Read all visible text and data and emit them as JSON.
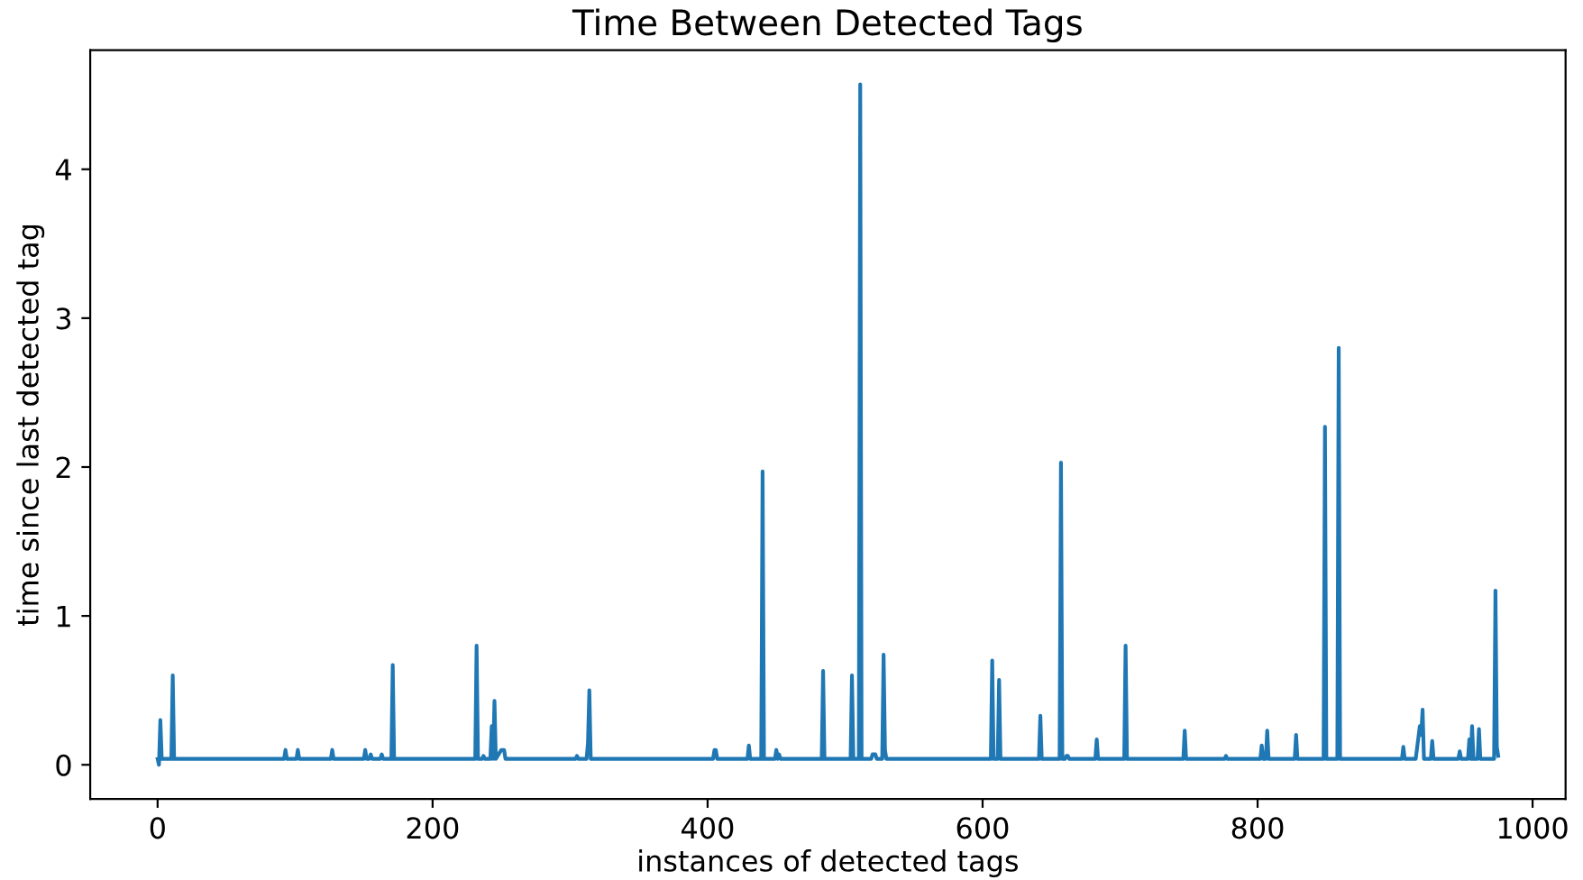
{
  "chart_data": {
    "type": "line",
    "title": "Time Between Detected Tags",
    "xlabel": "instances of detected tags",
    "ylabel": "time since last detected tag",
    "x": [
      0,
      1,
      2,
      3,
      10,
      11,
      12,
      92,
      93,
      94,
      101,
      102,
      103,
      126,
      127,
      128,
      150,
      151,
      152,
      154,
      155,
      156,
      162,
      163,
      164,
      170,
      171,
      172,
      231,
      232,
      233,
      236,
      237,
      238,
      242,
      243,
      244,
      245,
      246,
      250,
      252,
      253,
      304,
      305,
      306,
      312,
      313,
      314,
      315,
      404,
      405,
      406,
      407,
      429,
      430,
      431,
      439,
      440,
      441,
      449,
      450,
      451,
      452,
      453,
      483,
      484,
      485,
      504,
      505,
      506,
      510,
      511,
      512,
      519,
      520,
      522,
      523,
      527,
      528,
      529,
      530,
      606,
      607,
      608,
      611,
      612,
      613,
      641,
      642,
      643,
      656,
      657,
      658,
      660,
      661,
      662,
      663,
      682,
      683,
      684,
      703,
      704,
      705,
      746,
      747,
      748,
      776,
      777,
      778,
      802,
      803,
      804,
      806,
      807,
      808,
      827,
      828,
      829,
      848,
      849,
      850,
      858,
      859,
      860,
      905,
      906,
      907,
      915,
      918,
      919,
      920,
      921,
      926,
      927,
      928,
      946,
      947,
      948,
      953,
      954,
      955,
      956,
      957,
      960,
      961,
      962,
      972,
      973,
      974,
      975
    ],
    "series": [
      {
        "color": "#1f77b4",
        "values": [
          0.04,
          0,
          0.3,
          0.04,
          0.04,
          0.6,
          0.04,
          0.04,
          0.1,
          0.04,
          0.04,
          0.1,
          0.04,
          0.04,
          0.1,
          0.04,
          0.04,
          0.1,
          0.04,
          0.04,
          0.07,
          0.04,
          0.04,
          0.07,
          0.04,
          0.04,
          0.67,
          0.04,
          0.04,
          0.8,
          0.04,
          0.04,
          0.06,
          0.04,
          0.04,
          0.26,
          0.04,
          0.43,
          0.04,
          0.1,
          0.1,
          0.04,
          0.04,
          0.06,
          0.04,
          0.04,
          0.15,
          0.5,
          0.04,
          0.04,
          0.1,
          0.1,
          0.04,
          0.04,
          0.13,
          0.04,
          0.04,
          1.97,
          0.04,
          0.04,
          0.1,
          0.04,
          0.07,
          0.04,
          0.04,
          0.63,
          0.04,
          0.04,
          0.6,
          0.04,
          0.04,
          4.57,
          0.04,
          0.04,
          0.07,
          0.07,
          0.04,
          0.04,
          0.74,
          0.1,
          0.04,
          0.04,
          0.7,
          0.04,
          0.04,
          0.57,
          0.04,
          0.04,
          0.33,
          0.04,
          0.04,
          2.03,
          0.04,
          0.04,
          0.06,
          0.06,
          0.04,
          0.04,
          0.17,
          0.04,
          0.04,
          0.8,
          0.04,
          0.04,
          0.23,
          0.04,
          0.04,
          0.06,
          0.04,
          0.04,
          0.13,
          0.04,
          0.04,
          0.23,
          0.04,
          0.04,
          0.2,
          0.04,
          0.04,
          2.27,
          0.04,
          0.04,
          2.8,
          0.04,
          0.04,
          0.12,
          0.04,
          0.04,
          0.26,
          0.2,
          0.37,
          0.04,
          0.04,
          0.16,
          0.04,
          0.04,
          0.09,
          0.04,
          0.04,
          0.17,
          0.04,
          0.26,
          0.04,
          0.04,
          0.24,
          0.04,
          0.04,
          1.17,
          0.12,
          0.06
        ]
      }
    ],
    "xlim": [
      -49,
      1024
    ],
    "ylim": [
      -0.23,
      4.8
    ],
    "xticks": [
      0,
      200,
      400,
      600,
      800,
      1000
    ],
    "yticks": [
      0,
      1,
      2,
      3,
      4
    ],
    "grid": false,
    "marker": "none",
    "line_style": "solid"
  }
}
